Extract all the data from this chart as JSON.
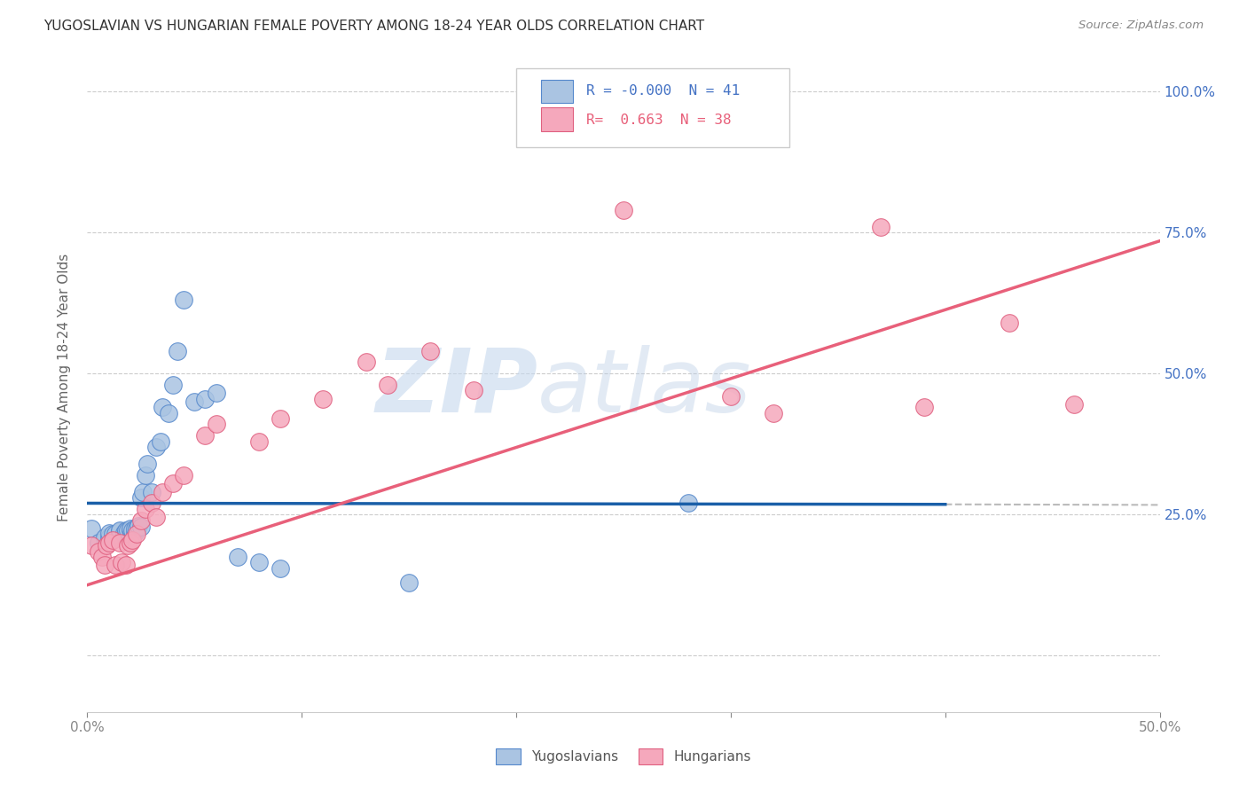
{
  "title": "YUGOSLAVIAN VS HUNGARIAN FEMALE POVERTY AMONG 18-24 YEAR OLDS CORRELATION CHART",
  "source": "Source: ZipAtlas.com",
  "ylabel": "Female Poverty Among 18-24 Year Olds",
  "xlim": [
    0.0,
    0.5
  ],
  "ylim": [
    -0.1,
    1.05
  ],
  "legend_R_yugo": "-0.000",
  "legend_N_yugo": "41",
  "legend_R_hung": "0.663",
  "legend_N_hung": "38",
  "yugo_color": "#aac4e2",
  "hung_color": "#f5a8bc",
  "yugo_edge_color": "#5588cc",
  "hung_edge_color": "#e06080",
  "yugo_line_color": "#1a5fa8",
  "hung_line_color": "#e8607a",
  "watermark_zip": "ZIP",
  "watermark_atlas": "atlas",
  "yugo_scatter_x": [
    0.002,
    0.005,
    0.008,
    0.01,
    0.01,
    0.012,
    0.013,
    0.015,
    0.015,
    0.017,
    0.018,
    0.018,
    0.019,
    0.02,
    0.02,
    0.021,
    0.022,
    0.022,
    0.023,
    0.024,
    0.025,
    0.025,
    0.026,
    0.027,
    0.028,
    0.03,
    0.032,
    0.034,
    0.035,
    0.038,
    0.04,
    0.042,
    0.045,
    0.05,
    0.055,
    0.06,
    0.07,
    0.08,
    0.09,
    0.15,
    0.28
  ],
  "yugo_scatter_y": [
    0.225,
    0.2,
    0.21,
    0.21,
    0.218,
    0.215,
    0.215,
    0.22,
    0.222,
    0.218,
    0.218,
    0.222,
    0.222,
    0.222,
    0.225,
    0.222,
    0.218,
    0.225,
    0.225,
    0.23,
    0.228,
    0.28,
    0.29,
    0.32,
    0.34,
    0.29,
    0.37,
    0.38,
    0.44,
    0.43,
    0.48,
    0.54,
    0.63,
    0.45,
    0.455,
    0.465,
    0.175,
    0.165,
    0.155,
    0.13,
    0.27
  ],
  "hung_scatter_x": [
    0.002,
    0.005,
    0.007,
    0.008,
    0.009,
    0.01,
    0.012,
    0.013,
    0.015,
    0.016,
    0.018,
    0.019,
    0.02,
    0.021,
    0.023,
    0.025,
    0.027,
    0.03,
    0.032,
    0.035,
    0.04,
    0.045,
    0.055,
    0.06,
    0.08,
    0.09,
    0.11,
    0.13,
    0.14,
    0.16,
    0.18,
    0.25,
    0.3,
    0.32,
    0.37,
    0.39,
    0.43,
    0.46
  ],
  "hung_scatter_y": [
    0.195,
    0.185,
    0.175,
    0.16,
    0.195,
    0.2,
    0.205,
    0.16,
    0.2,
    0.165,
    0.16,
    0.195,
    0.2,
    0.205,
    0.215,
    0.24,
    0.26,
    0.27,
    0.245,
    0.29,
    0.305,
    0.32,
    0.39,
    0.41,
    0.38,
    0.42,
    0.455,
    0.52,
    0.48,
    0.54,
    0.47,
    0.79,
    0.46,
    0.43,
    0.76,
    0.44,
    0.59,
    0.445
  ],
  "yugo_trend_x": [
    0.0,
    0.4
  ],
  "yugo_trend_y": [
    0.27,
    0.268
  ],
  "hung_trend_x": [
    0.0,
    0.5
  ],
  "hung_trend_y": [
    0.125,
    0.735
  ],
  "background_color": "#ffffff",
  "grid_color": "#cccccc",
  "ytick_positions": [
    0.0,
    0.25,
    0.5,
    0.75,
    1.0
  ],
  "ytick_labels_right": [
    "",
    "25.0%",
    "50.0%",
    "75.0%",
    "100.0%"
  ],
  "xtick_positions": [
    0.0,
    0.1,
    0.2,
    0.3,
    0.4,
    0.5
  ],
  "xtick_labels": [
    "0.0%",
    "",
    "",
    "",
    "",
    "50.0%"
  ]
}
